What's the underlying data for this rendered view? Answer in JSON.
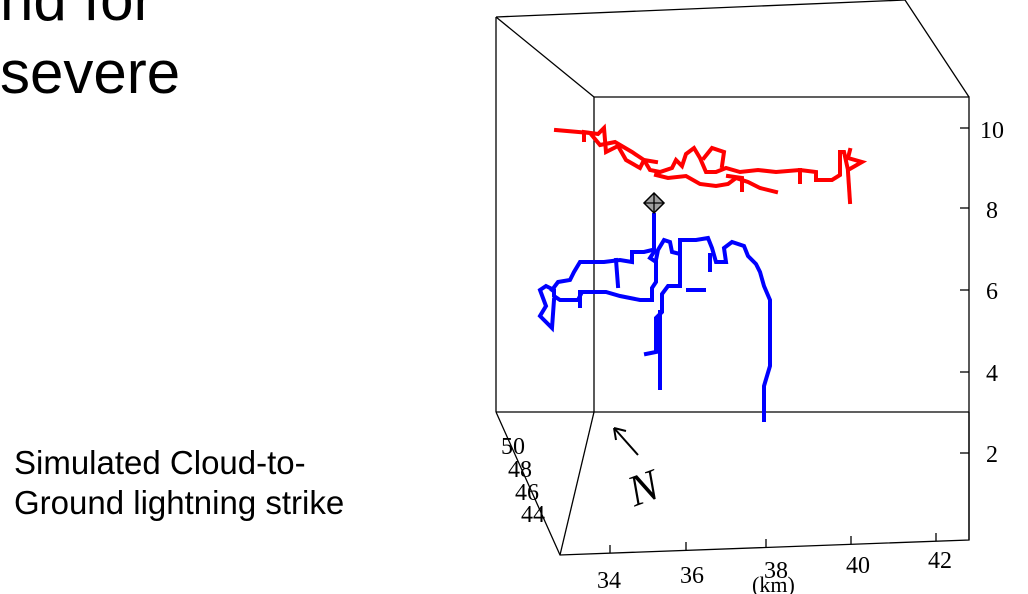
{
  "slide": {
    "lines": [
      "nd for",
      "severe"
    ]
  },
  "caption": {
    "line1": "Simulated Cloud-to-",
    "line2": "Ground lightning strike"
  },
  "figure": {
    "z_ticks": [
      "10",
      "8",
      "6",
      "4",
      "2"
    ],
    "x_ticks": [
      "34",
      "36",
      "38",
      "40",
      "42"
    ],
    "y_ticks": [
      "50",
      "48",
      "46",
      "44"
    ],
    "x_unit": "(km)",
    "north_label": "N",
    "colors": {
      "positive_channel": "#ff0000",
      "negative_channel": "#0000ff",
      "frame": "#000000",
      "initiation_marker": "#999999"
    }
  }
}
